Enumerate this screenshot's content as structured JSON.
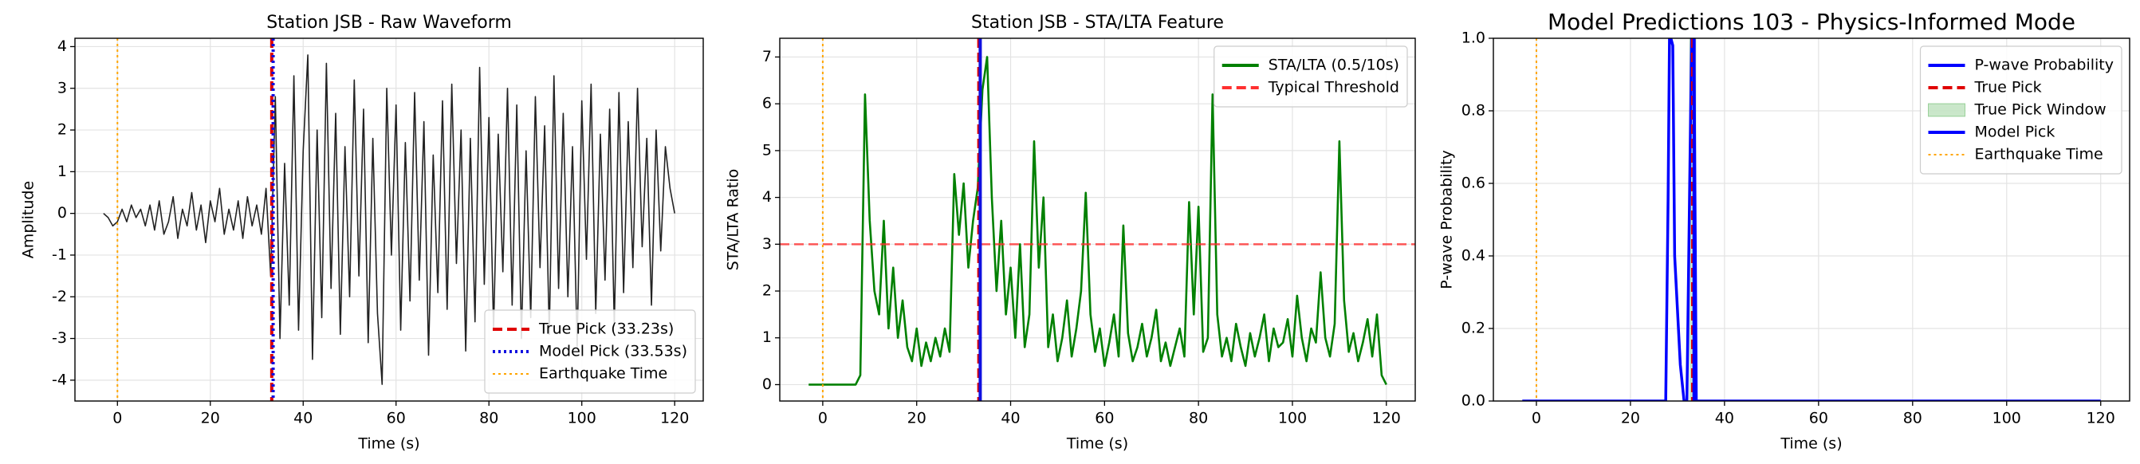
{
  "chart_data": [
    {
      "type": "line",
      "title": "Station JSB - Raw Waveform",
      "x_label": "Time (s)",
      "y_label": "Amplitude",
      "x": [
        -3,
        -2,
        -1,
        0,
        1,
        2,
        3,
        4,
        5,
        6,
        7,
        8,
        9,
        10,
        11,
        12,
        13,
        14,
        15,
        16,
        17,
        18,
        19,
        20,
        21,
        22,
        23,
        24,
        25,
        26,
        27,
        28,
        29,
        30,
        31,
        32,
        33,
        34,
        35,
        36,
        37,
        38,
        39,
        40,
        41,
        42,
        43,
        44,
        45,
        46,
        47,
        48,
        49,
        50,
        51,
        52,
        53,
        54,
        55,
        56,
        57,
        58,
        59,
        60,
        61,
        62,
        63,
        64,
        65,
        66,
        67,
        68,
        69,
        70,
        71,
        72,
        73,
        74,
        75,
        76,
        77,
        78,
        79,
        80,
        81,
        82,
        83,
        84,
        85,
        86,
        87,
        88,
        89,
        90,
        91,
        92,
        93,
        94,
        95,
        96,
        97,
        98,
        99,
        100,
        101,
        102,
        103,
        104,
        105,
        106,
        107,
        108,
        109,
        110,
        111,
        112,
        113,
        114,
        115,
        116,
        117,
        118,
        119,
        120
      ],
      "series": [
        {
          "color": "#222222",
          "values": [
            0,
            -0.1,
            -0.3,
            -0.2,
            0.1,
            -0.2,
            0.2,
            -0.1,
            0.1,
            -0.3,
            0.2,
            -0.4,
            0.3,
            -0.5,
            -0.2,
            0.4,
            -0.6,
            0.1,
            -0.3,
            0.5,
            -0.4,
            0.2,
            -0.7,
            0.3,
            -0.2,
            0.6,
            -0.5,
            0.1,
            -0.4,
            0.3,
            -0.6,
            0.4,
            -0.3,
            0.2,
            -0.5,
            0.6,
            -1.5,
            2.8,
            -3.0,
            1.2,
            -2.2,
            3.3,
            -2.8,
            1.5,
            3.8,
            -3.5,
            2.0,
            -2.5,
            3.6,
            -1.8,
            2.4,
            -2.9,
            1.6,
            -2.0,
            3.2,
            -1.5,
            2.5,
            -3.1,
            1.8,
            -2.4,
            -4.1,
            3.0,
            -1.0,
            2.6,
            -2.8,
            1.7,
            -2.1,
            2.9,
            -1.6,
            2.2,
            -3.4,
            1.4,
            -1.9,
            2.7,
            -2.3,
            3.1,
            -1.2,
            2.0,
            -3.3,
            1.8,
            -2.6,
            3.5,
            -1.7,
            2.3,
            -2.8,
            1.9,
            -1.4,
            3.0,
            -2.2,
            2.6,
            -3.0,
            1.5,
            -2.5,
            2.8,
            -1.3,
            2.1,
            -2.9,
            3.3,
            -1.8,
            2.4,
            -2.0,
            1.6,
            -3.2,
            2.7,
            -1.1,
            3.1,
            -2.4,
            1.9,
            -1.6,
            2.5,
            -2.7,
            2.9,
            -1.9,
            2.2,
            -1.3,
            3.0,
            -0.8,
            1.8,
            -2.2,
            2.0,
            -0.9,
            1.6,
            0.6,
            0.0
          ]
        }
      ],
      "overlays": [
        {
          "kind": "vline",
          "name": "True Pick (33.23s)",
          "x": 33.23,
          "color": "#e00000",
          "dash": "dashed"
        },
        {
          "kind": "vline",
          "name": "Model Pick (33.53s)",
          "x": 33.53,
          "color": "#1010e0",
          "dash": "dotted"
        },
        {
          "kind": "vline",
          "name": "Earthquake Time",
          "x": 0,
          "color": "#ffa500",
          "dash": "dotted"
        }
      ],
      "xlim": [
        -9.15,
        126.15
      ],
      "xticks": [
        0,
        20,
        40,
        60,
        80,
        100,
        120
      ],
      "ylim": [
        -4.5,
        4.2
      ],
      "yticks": [
        -4,
        -3,
        -2,
        -1,
        0,
        1,
        2,
        3,
        4
      ],
      "grid": true,
      "legend": "lower-right"
    },
    {
      "type": "line",
      "title": "Station JSB - STA/LTA Feature",
      "x_label": "Time (s)",
      "y_label": "STA/LTA Ratio",
      "x": [
        -3,
        -2,
        -1,
        0,
        1,
        2,
        3,
        4,
        5,
        6,
        7,
        8,
        9,
        10,
        11,
        12,
        13,
        14,
        15,
        16,
        17,
        18,
        19,
        20,
        21,
        22,
        23,
        24,
        25,
        26,
        27,
        28,
        29,
        30,
        31,
        32,
        33,
        34,
        35,
        36,
        37,
        38,
        39,
        40,
        41,
        42,
        43,
        44,
        45,
        46,
        47,
        48,
        49,
        50,
        51,
        52,
        53,
        54,
        55,
        56,
        57,
        58,
        59,
        60,
        61,
        62,
        63,
        64,
        65,
        66,
        67,
        68,
        69,
        70,
        71,
        72,
        73,
        74,
        75,
        76,
        77,
        78,
        79,
        80,
        81,
        82,
        83,
        84,
        85,
        86,
        87,
        88,
        89,
        90,
        91,
        92,
        93,
        94,
        95,
        96,
        97,
        98,
        99,
        100,
        101,
        102,
        103,
        104,
        105,
        106,
        107,
        108,
        109,
        110,
        111,
        112,
        113,
        114,
        115,
        116,
        117,
        118,
        119,
        120
      ],
      "series": [
        {
          "name": "STA/LTA (0.5/10s)",
          "color": "#008000",
          "values": [
            0,
            0,
            0,
            0,
            0,
            0,
            0,
            0,
            0,
            0,
            0,
            0.2,
            6.2,
            3.5,
            2.0,
            1.5,
            3.5,
            1.2,
            2.5,
            1.0,
            1.8,
            0.8,
            0.5,
            1.2,
            0.4,
            0.9,
            0.5,
            1.0,
            0.6,
            1.2,
            0.7,
            4.5,
            3.2,
            4.3,
            2.5,
            3.5,
            4.2,
            6.3,
            7.0,
            4.0,
            2.0,
            3.5,
            1.5,
            2.5,
            1.0,
            3.0,
            0.8,
            1.5,
            5.2,
            2.5,
            4.0,
            0.8,
            1.5,
            0.5,
            1.0,
            1.8,
            0.6,
            1.2,
            2.0,
            4.1,
            1.5,
            0.7,
            1.2,
            0.4,
            0.9,
            1.5,
            0.6,
            3.4,
            1.1,
            0.5,
            0.8,
            1.3,
            0.6,
            1.0,
            1.6,
            0.5,
            0.9,
            0.4,
            0.8,
            1.2,
            0.6,
            3.9,
            1.5,
            3.8,
            0.7,
            1.0,
            6.2,
            1.5,
            0.6,
            1.0,
            0.5,
            1.3,
            0.8,
            0.4,
            1.1,
            0.6,
            1.0,
            1.5,
            0.5,
            1.2,
            0.8,
            0.9,
            1.4,
            0.6,
            1.9,
            1.0,
            0.5,
            1.2,
            0.9,
            2.4,
            1.0,
            0.6,
            1.3,
            5.2,
            1.8,
            0.7,
            1.1,
            0.5,
            0.9,
            1.4,
            0.6,
            1.5,
            0.2,
            0.0
          ]
        }
      ],
      "overlays": [
        {
          "kind": "hline",
          "name": "Typical Threshold",
          "y": 3,
          "color": "#ff3030",
          "dash": "dashed"
        },
        {
          "kind": "vline",
          "x": 0,
          "color": "#ffa500",
          "dash": "dotted"
        },
        {
          "kind": "vline",
          "x": 33.23,
          "color": "#e00000",
          "dash": "dashed"
        },
        {
          "kind": "vline",
          "x": 33.53,
          "color": "#1010e0",
          "dash": "solid"
        }
      ],
      "xlim": [
        -9.15,
        126.15
      ],
      "xticks": [
        0,
        20,
        40,
        60,
        80,
        100,
        120
      ],
      "ylim": [
        -0.35,
        7.4
      ],
      "yticks": [
        0,
        1,
        2,
        3,
        4,
        5,
        6,
        7
      ],
      "grid": true,
      "legend": "upper-right"
    },
    {
      "type": "line",
      "title": "Model Predictions 103 - Physics-Informed Mode",
      "x_label": "Time (s)",
      "y_label": "P-wave Probability",
      "x": [
        -3,
        27.5,
        28,
        28.3,
        28.6,
        29,
        29.4,
        29.8,
        30.2,
        30.6,
        31,
        31.4,
        32,
        33,
        33.5,
        34,
        120
      ],
      "series": [
        {
          "name": "P-wave Probability",
          "color": "#0000ff",
          "values": [
            0,
            0,
            0.55,
            1,
            1,
            0.98,
            0.4,
            0.3,
            0.2,
            0.1,
            0.05,
            0,
            0,
            1,
            1,
            0,
            0
          ]
        }
      ],
      "overlays": [
        {
          "kind": "vline",
          "name": "True Pick",
          "x": 33.23,
          "color": "#e00000",
          "dash": "dashed"
        },
        {
          "kind": "span",
          "name": "True Pick Window",
          "x0": 32.5,
          "x1": 34,
          "color": "#2ca02c"
        },
        {
          "kind": "vline",
          "name": "Model Pick",
          "x": 33.53,
          "color": "#0000ff",
          "dash": "solid"
        },
        {
          "kind": "vline",
          "name": "Earthquake Time",
          "x": 0,
          "color": "#ffa500",
          "dash": "dotted"
        }
      ],
      "xlim": [
        -9.15,
        126.15
      ],
      "xticks": [
        0,
        20,
        40,
        60,
        80,
        100,
        120
      ],
      "ylim": [
        0,
        1
      ],
      "yticks": [
        {
          "value": 0,
          "label": "0.0"
        },
        0.2,
        0.4,
        0.6,
        0.8,
        {
          "value": 1,
          "label": "1.0"
        }
      ],
      "grid": true,
      "legend": "upper-right"
    }
  ]
}
